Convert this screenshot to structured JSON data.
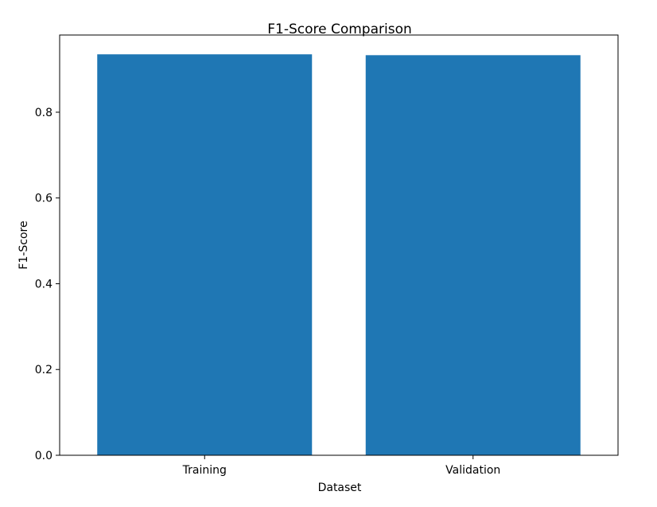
{
  "chart_data": {
    "type": "bar",
    "title": "F1-Score Comparison",
    "xlabel": "Dataset",
    "ylabel": "F1-Score",
    "categories": [
      "Training",
      "Validation"
    ],
    "values": [
      0.935,
      0.933
    ],
    "ylim": [
      0,
      0.98
    ],
    "yticks": [
      0.0,
      0.2,
      0.4,
      0.6,
      0.8
    ],
    "ytick_labels": [
      "0.0",
      "0.2",
      "0.4",
      "0.6",
      "0.8"
    ],
    "bar_color": "#1f77b4",
    "grid": false,
    "legend": "none"
  }
}
